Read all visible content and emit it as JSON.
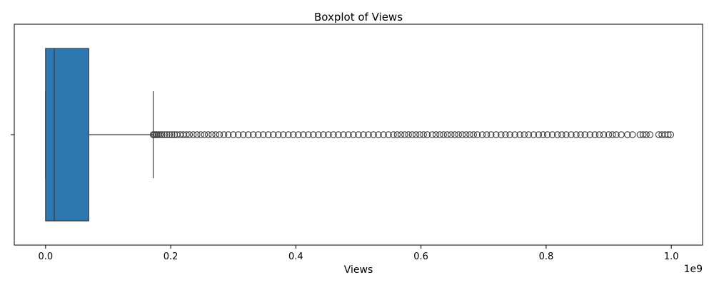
{
  "chart_data": {
    "type": "boxplot",
    "title": "Boxplot of Views",
    "xlabel": "Views",
    "ylabel": "",
    "x_scale_label": "1e9",
    "xlim": [
      -0.05,
      1.05
    ],
    "x_ticks": [
      0.0,
      0.2,
      0.4,
      0.6,
      0.8,
      1.0
    ],
    "x_tick_labels": [
      "0.0",
      "0.2",
      "0.4",
      "0.6",
      "0.8",
      "1.0"
    ],
    "y_tick_labels": [
      ""
    ],
    "box": {
      "whisker_low": 0.0,
      "q1": 0.0,
      "median": 0.014,
      "q3": 0.069,
      "whisker_high": 0.172
    },
    "outliers": [
      0.172,
      0.174,
      0.176,
      0.178,
      0.18,
      0.183,
      0.186,
      0.19,
      0.194,
      0.198,
      0.202,
      0.206,
      0.21,
      0.215,
      0.22,
      0.225,
      0.23,
      0.236,
      0.242,
      0.248,
      0.254,
      0.26,
      0.266,
      0.272,
      0.278,
      0.285,
      0.292,
      0.3,
      0.308,
      0.316,
      0.324,
      0.332,
      0.34,
      0.348,
      0.356,
      0.364,
      0.372,
      0.38,
      0.388,
      0.396,
      0.404,
      0.412,
      0.42,
      0.428,
      0.436,
      0.444,
      0.452,
      0.46,
      0.468,
      0.476,
      0.484,
      0.492,
      0.5,
      0.508,
      0.516,
      0.524,
      0.532,
      0.54,
      0.548,
      0.556,
      0.562,
      0.568,
      0.574,
      0.58,
      0.586,
      0.592,
      0.598,
      0.604,
      0.61,
      0.618,
      0.624,
      0.63,
      0.636,
      0.642,
      0.648,
      0.654,
      0.66,
      0.666,
      0.672,
      0.678,
      0.684,
      0.69,
      0.698,
      0.705,
      0.712,
      0.72,
      0.728,
      0.735,
      0.742,
      0.75,
      0.758,
      0.765,
      0.772,
      0.78,
      0.788,
      0.795,
      0.802,
      0.81,
      0.818,
      0.825,
      0.832,
      0.84,
      0.848,
      0.855,
      0.862,
      0.87,
      0.878,
      0.885,
      0.892,
      0.9,
      0.906,
      0.912,
      0.92,
      0.93,
      0.938,
      0.95,
      0.955,
      0.96,
      0.966,
      0.98,
      0.985,
      0.99,
      0.995,
      0.999
    ],
    "colors": {
      "box_fill": "#2e78b1",
      "line": "#3b3b3b",
      "axis": "#000000",
      "background": "#ffffff"
    },
    "grid": false,
    "legend": "none"
  }
}
